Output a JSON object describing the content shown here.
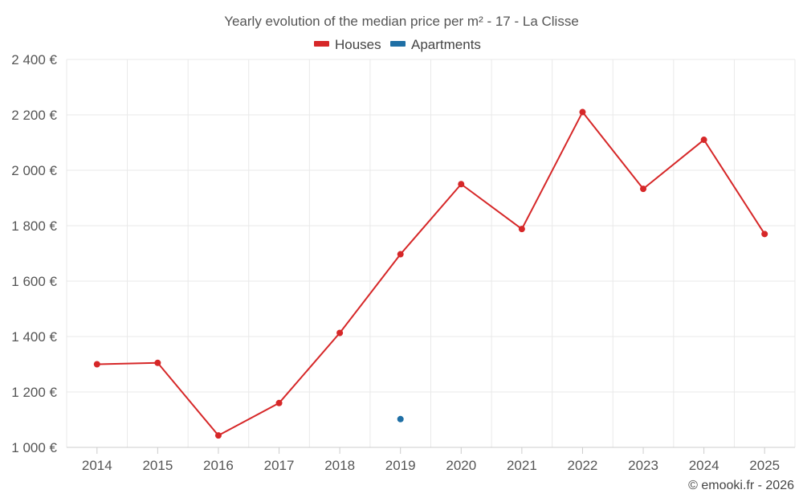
{
  "chart_data": {
    "type": "line",
    "title": "Yearly evolution of the median price per m² - 17 - La Clisse",
    "categories": [
      "2014",
      "2015",
      "2016",
      "2017",
      "2018",
      "2019",
      "2020",
      "2021",
      "2022",
      "2023",
      "2024",
      "2025"
    ],
    "ylim": [
      1000,
      2400
    ],
    "yticks": [
      1000,
      1200,
      1400,
      1600,
      1800,
      2000,
      2200,
      2400
    ],
    "ytick_labels": [
      "1 000 €",
      "1 200 €",
      "1 400 €",
      "1 600 €",
      "1 800 €",
      "2 000 €",
      "2 200 €",
      "2 400 €"
    ],
    "grid": true,
    "legend_position": "top-center",
    "series": [
      {
        "name": "Houses",
        "color": "#d62728",
        "values": [
          1300,
          1305,
          1043,
          1160,
          1413,
          1697,
          1950,
          1788,
          2210,
          1933,
          2110,
          1770
        ]
      },
      {
        "name": "Apartments",
        "color": "#1f6fa5",
        "values": [
          null,
          null,
          null,
          null,
          null,
          1102,
          null,
          null,
          null,
          null,
          null,
          null
        ]
      }
    ]
  },
  "credit": "© emooki.fr - 2026"
}
